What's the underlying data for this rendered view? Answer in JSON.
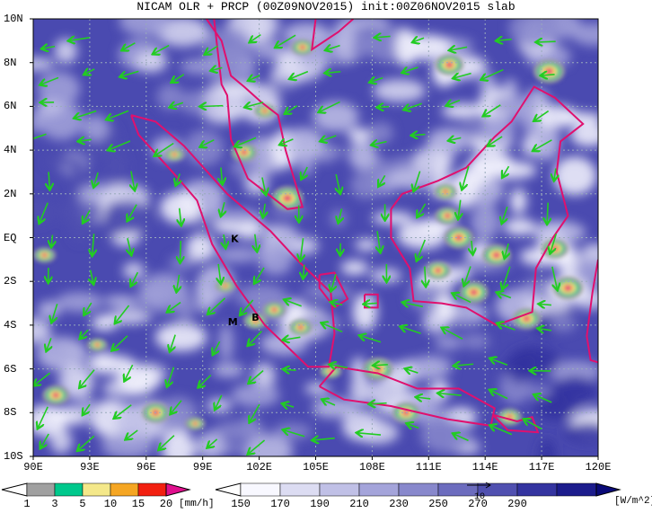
{
  "title": "NICAM OLR + PRCP (00Z09NOV2015) init:00Z06NOV2015 slab",
  "map": {
    "lat_labels": [
      "10N",
      "8N",
      "6N",
      "4N",
      "2N",
      "EQ",
      "2S",
      "4S",
      "6S",
      "8S",
      "10S"
    ],
    "lon_labels": [
      "90E",
      "93E",
      "96E",
      "99E",
      "102E",
      "105E",
      "108E",
      "111E",
      "114E",
      "117E",
      "120E"
    ],
    "extent": {
      "lon_min": 90,
      "lon_max": 120,
      "lat_min": -10,
      "lat_max": 10
    },
    "place_markers": [
      {
        "label": "K",
        "lon": 100.7,
        "lat": -0.2
      },
      {
        "label": "M",
        "lon": 100.6,
        "lat": -4.0
      },
      {
        "label": "B",
        "lon": 101.8,
        "lat": -3.8
      }
    ],
    "coastline_color": "#e0106e",
    "wind_vector_color": "#22cc22",
    "grid_style": "dotted"
  },
  "precip_colorbar": {
    "ticks": [
      "1",
      "3",
      "5",
      "10",
      "15",
      "20"
    ],
    "unit": "[mm/h]",
    "colors": [
      "#a0a0a0",
      "#00c88c",
      "#f4e88a",
      "#f5a623",
      "#f22010",
      "#e0108e"
    ]
  },
  "olr_colorbar": {
    "ticks": [
      "150",
      "170",
      "190",
      "210",
      "230",
      "250",
      "270",
      "290"
    ],
    "unit": "[W/m^2]",
    "colors": [
      "#f8f8ff",
      "#dcdcf2",
      "#c0c0e6",
      "#a4a4da",
      "#8888cc",
      "#6c6cbe",
      "#5050b0",
      "#3434a0",
      "#1c1c8c",
      "#0a0a78"
    ]
  },
  "vector_reference": "10"
}
